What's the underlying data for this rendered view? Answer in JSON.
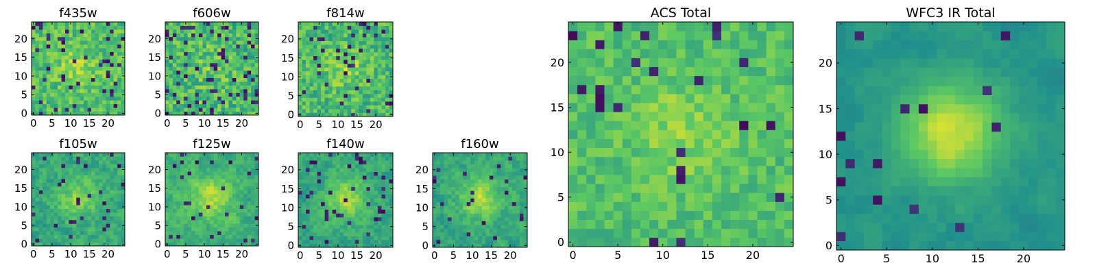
{
  "figure": {
    "colormap": "viridis",
    "colormap_stops": [
      "#440154",
      "#3b528b",
      "#21918c",
      "#5ec962",
      "#fde725"
    ]
  },
  "chart_data": [
    {
      "type": "heatmap",
      "title": "f435w",
      "grid_size": 25,
      "xlim": [
        -0.5,
        24.5
      ],
      "ylim": [
        -0.5,
        24.5
      ],
      "xticks": [
        0,
        5,
        10,
        15,
        20
      ],
      "yticks": [
        0,
        5,
        10,
        15,
        20
      ],
      "noise": {
        "seed": 11,
        "center": 0.7,
        "amp": 0.14,
        "spread": 0.16,
        "smooth": 0.1,
        "dip_prob": 0.08
      }
    },
    {
      "type": "heatmap",
      "title": "f606w",
      "grid_size": 25,
      "xlim": [
        -0.5,
        24.5
      ],
      "ylim": [
        -0.5,
        24.5
      ],
      "xticks": [
        0,
        5,
        10,
        15,
        20
      ],
      "yticks": [
        0,
        5,
        10,
        15,
        20
      ],
      "noise": {
        "seed": 23,
        "center": 0.68,
        "amp": 0.08,
        "spread": 0.18,
        "smooth": 0.05,
        "dip_prob": 0.1
      }
    },
    {
      "type": "heatmap",
      "title": "f814w",
      "grid_size": 25,
      "xlim": [
        -0.5,
        24.5
      ],
      "ylim": [
        -0.5,
        24.5
      ],
      "xticks": [
        0,
        5,
        10,
        15,
        20
      ],
      "yticks": [
        0,
        5,
        10,
        15,
        20
      ],
      "noise": {
        "seed": 37,
        "center": 0.68,
        "amp": 0.14,
        "spread": 0.17,
        "smooth": 0.1,
        "dip_prob": 0.07
      }
    },
    {
      "type": "heatmap",
      "title": "f105w",
      "grid_size": 25,
      "xlim": [
        -0.5,
        24.5
      ],
      "ylim": [
        -0.5,
        24.5
      ],
      "xticks": [
        0,
        5,
        10,
        15,
        20
      ],
      "yticks": [
        0,
        5,
        10,
        15,
        20
      ],
      "noise": {
        "seed": 41,
        "center": 0.6,
        "amp": 0.22,
        "spread": 0.16,
        "smooth": 0.5,
        "dip_prob": 0.05
      }
    },
    {
      "type": "heatmap",
      "title": "f125w",
      "grid_size": 25,
      "xlim": [
        -0.5,
        24.5
      ],
      "ylim": [
        -0.5,
        24.5
      ],
      "xticks": [
        0,
        5,
        10,
        15,
        20
      ],
      "yticks": [
        0,
        5,
        10,
        15,
        20
      ],
      "noise": {
        "seed": 53,
        "center": 0.64,
        "amp": 0.24,
        "spread": 0.15,
        "smooth": 0.55,
        "dip_prob": 0.05
      }
    },
    {
      "type": "heatmap",
      "title": "f140w",
      "grid_size": 25,
      "xlim": [
        -0.5,
        24.5
      ],
      "ylim": [
        -0.5,
        24.5
      ],
      "xticks": [
        0,
        5,
        10,
        15,
        20
      ],
      "yticks": [
        0,
        5,
        10,
        15,
        20
      ],
      "noise": {
        "seed": 67,
        "center": 0.6,
        "amp": 0.26,
        "spread": 0.15,
        "smooth": 0.55,
        "dip_prob": 0.05
      }
    },
    {
      "type": "heatmap",
      "title": "f160w",
      "grid_size": 25,
      "xlim": [
        -0.5,
        24.5
      ],
      "ylim": [
        -0.5,
        24.5
      ],
      "xticks": [
        0,
        5,
        10,
        15,
        20
      ],
      "yticks": [
        0,
        5,
        10,
        15,
        20
      ],
      "noise": {
        "seed": 79,
        "center": 0.6,
        "amp": 0.28,
        "spread": 0.15,
        "smooth": 0.55,
        "dip_prob": 0.05
      }
    },
    {
      "type": "heatmap",
      "title": "ACS Total",
      "grid_size": 25,
      "xlim": [
        -0.5,
        24.5
      ],
      "ylim": [
        -0.5,
        24.5
      ],
      "xticks": [
        0,
        5,
        10,
        15,
        20
      ],
      "yticks": [
        0,
        5,
        10,
        15,
        20
      ],
      "noise": {
        "seed": 97,
        "center": 0.7,
        "amp": 0.12,
        "spread": 0.12,
        "smooth": 0.15,
        "dip_prob": 0.04
      }
    },
    {
      "type": "heatmap",
      "title": "WFC3 IR Total",
      "grid_size": 25,
      "xlim": [
        -0.5,
        24.5
      ],
      "ylim": [
        -0.5,
        24.5
      ],
      "xticks": [
        0,
        5,
        10,
        15,
        20
      ],
      "yticks": [
        0,
        5,
        10,
        15,
        20
      ],
      "noise": {
        "seed": 113,
        "center": 0.52,
        "amp": 0.4,
        "spread": 0.1,
        "smooth": 0.75,
        "dip_prob": 0.03
      }
    }
  ]
}
